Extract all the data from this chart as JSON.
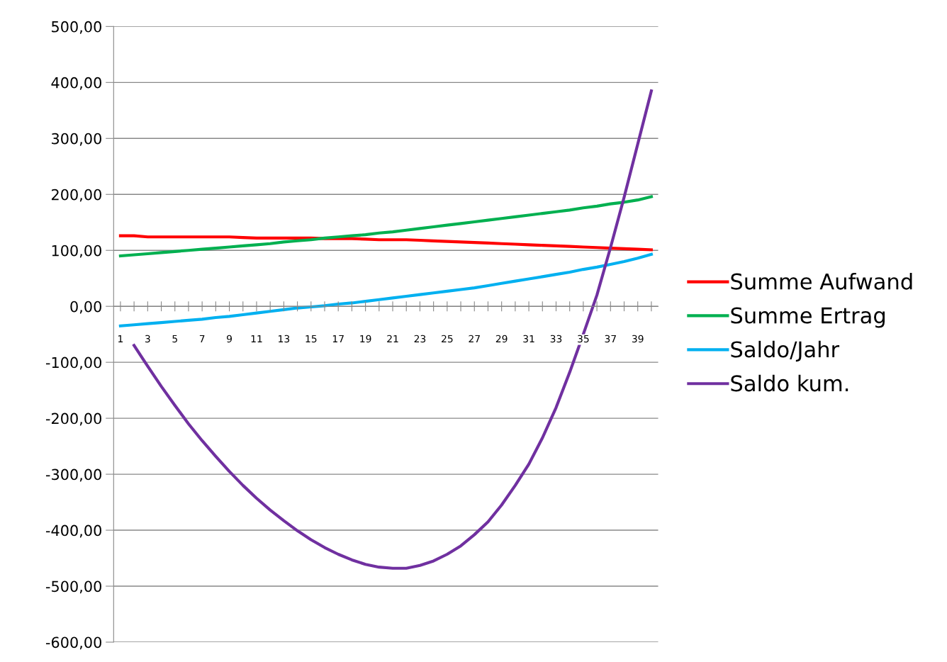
{
  "chart_data": {
    "type": "line",
    "categories": [
      "1",
      null,
      "3",
      null,
      "5",
      null,
      "7",
      null,
      "9",
      null,
      "11",
      null,
      "13",
      null,
      "15",
      null,
      "17",
      null,
      "19",
      null,
      "21",
      null,
      "23",
      null,
      "25",
      null,
      "27",
      null,
      "29",
      null,
      "31",
      null,
      "33",
      null,
      "35",
      null,
      "37",
      null,
      "39",
      null
    ],
    "series": [
      {
        "name": "Summe Aufwand",
        "color": "#ff0000",
        "values": [
          126,
          126,
          124,
          124,
          124,
          124,
          124,
          124,
          124,
          123,
          122,
          122,
          122,
          122,
          122,
          121,
          121,
          121,
          120,
          119,
          119,
          119,
          118,
          117,
          116,
          115,
          114,
          113,
          112,
          111,
          110,
          109,
          108,
          107,
          106,
          105,
          104,
          103,
          102,
          101
        ]
      },
      {
        "name": "Summe Ertrag",
        "color": "#00b050",
        "values": [
          90,
          92,
          94,
          96,
          98,
          100,
          102,
          104,
          106,
          108,
          110,
          112,
          115,
          117,
          119,
          122,
          124,
          126,
          128,
          131,
          133,
          136,
          139,
          142,
          145,
          148,
          151,
          154,
          157,
          160,
          163,
          166,
          169,
          172,
          176,
          179,
          183,
          186,
          190,
          196
        ]
      },
      {
        "name": "Saldo/Jahr",
        "color": "#00b0f0",
        "values": [
          -35,
          -33,
          -31,
          -29,
          -27,
          -25,
          -23,
          -20,
          -18,
          -15,
          -12,
          -9,
          -6,
          -3,
          -1,
          1,
          4,
          6,
          9,
          12,
          15,
          18,
          21,
          24,
          27,
          30,
          33,
          37,
          41,
          45,
          49,
          53,
          57,
          61,
          66,
          70,
          75,
          80,
          86,
          93
        ]
      },
      {
        "name": "Saldo kum.",
        "color": "#7030a0",
        "values": [
          null,
          -70,
          -107,
          -143,
          -177,
          -210,
          -240,
          -268,
          -295,
          -320,
          -343,
          -364,
          -383,
          -401,
          -417,
          -431,
          -443,
          -453,
          -461,
          -466,
          -468,
          -468,
          -463,
          -455,
          -443,
          -428,
          -408,
          -385,
          -355,
          -320,
          -282,
          -235,
          -181,
          -118,
          -50,
          20,
          105,
          195,
          290,
          385
        ]
      }
    ],
    "ylim": [
      -600,
      500
    ],
    "yticks": [
      {
        "value": -600,
        "label": "-600,00"
      },
      {
        "value": -500,
        "label": "-500,00"
      },
      {
        "value": -400,
        "label": "-400,00"
      },
      {
        "value": -300,
        "label": "-300,00"
      },
      {
        "value": -200,
        "label": "-200,00"
      },
      {
        "value": -100,
        "label": "-100,00"
      },
      {
        "value": 0,
        "label": "0,00"
      },
      {
        "value": 100,
        "label": "100,00"
      },
      {
        "value": 200,
        "label": "200,00"
      },
      {
        "value": 300,
        "label": "300,00"
      },
      {
        "value": 400,
        "label": "400,00"
      },
      {
        "value": 500,
        "label": "500,00"
      }
    ],
    "grid": "y",
    "legend": "right",
    "marker": "none",
    "line_style": "solid"
  }
}
